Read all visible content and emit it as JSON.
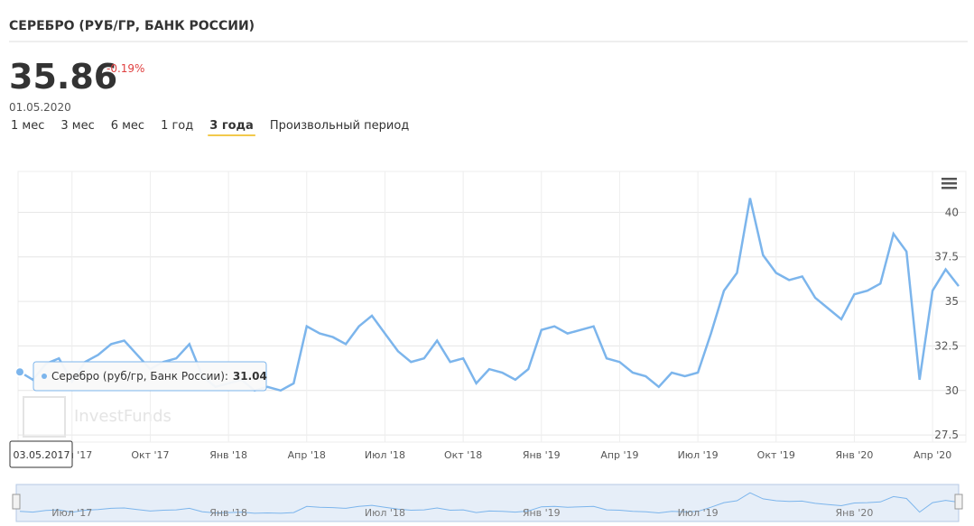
{
  "header": {
    "title": "СЕРЕБРО (РУБ/ГР, БАНК РОССИИ)",
    "price": "35.86",
    "change": "-0.19%",
    "date": "01.05.2020"
  },
  "periods": [
    "1 мес",
    "3 мес",
    "6 мес",
    "1 год",
    "3 года",
    "Произвольный период"
  ],
  "active_period": "3 года",
  "watermark": "InvestFunds",
  "tooltip": {
    "label": "Серебро (руб/гр, Банк России):",
    "value": "31.04",
    "date": "03.05.2017"
  },
  "chart_data": {
    "type": "line",
    "series": [
      {
        "name": "Серебро (руб/гр, Банк России)",
        "color": "#7cb5ec",
        "values": [
          31.04,
          30.6,
          31.5,
          31.8,
          30.5,
          31.6,
          32.0,
          32.6,
          32.8,
          32.0,
          31.2,
          31.6,
          31.8,
          32.6,
          30.8,
          30.2,
          30.4,
          30.6,
          30.0,
          30.2,
          30.0,
          30.4,
          33.6,
          33.2,
          33.0,
          32.6,
          33.6,
          34.2,
          33.2,
          32.2,
          31.6,
          31.8,
          32.8,
          31.6,
          31.8,
          30.4,
          31.2,
          31.0,
          30.6,
          31.2,
          33.4,
          33.6,
          33.2,
          33.4,
          33.6,
          31.8,
          31.6,
          31.0,
          30.8,
          30.2,
          31.0,
          30.8,
          31.0,
          33.2,
          35.6,
          36.6,
          40.8,
          37.6,
          36.6,
          36.2,
          36.4,
          35.2,
          34.6,
          34.0,
          35.4,
          35.6,
          36.0,
          38.8,
          37.8,
          30.6,
          35.6,
          36.8,
          35.86
        ]
      }
    ],
    "xlim": [
      0,
      72
    ],
    "xticks": [
      {
        "value": 4,
        "label": "Июл '17"
      },
      {
        "value": 10,
        "label": "Окт '17"
      },
      {
        "value": 16,
        "label": "Янв '18"
      },
      {
        "value": 22,
        "label": "Апр '18"
      },
      {
        "value": 28,
        "label": "Июл '18"
      },
      {
        "value": 34,
        "label": "Окт '18"
      },
      {
        "value": 40,
        "label": "Янв '19"
      },
      {
        "value": 46,
        "label": "Апр '19"
      },
      {
        "value": 52,
        "label": "Июл '19"
      },
      {
        "value": 58,
        "label": "Окт '19"
      },
      {
        "value": 64,
        "label": "Янв '20"
      },
      {
        "value": 70,
        "label": "Апр '20"
      }
    ],
    "ylim": [
      27.1,
      42.3
    ],
    "yticks": [
      27.5,
      30,
      32.5,
      35,
      37.5,
      40
    ],
    "grid": true
  }
}
